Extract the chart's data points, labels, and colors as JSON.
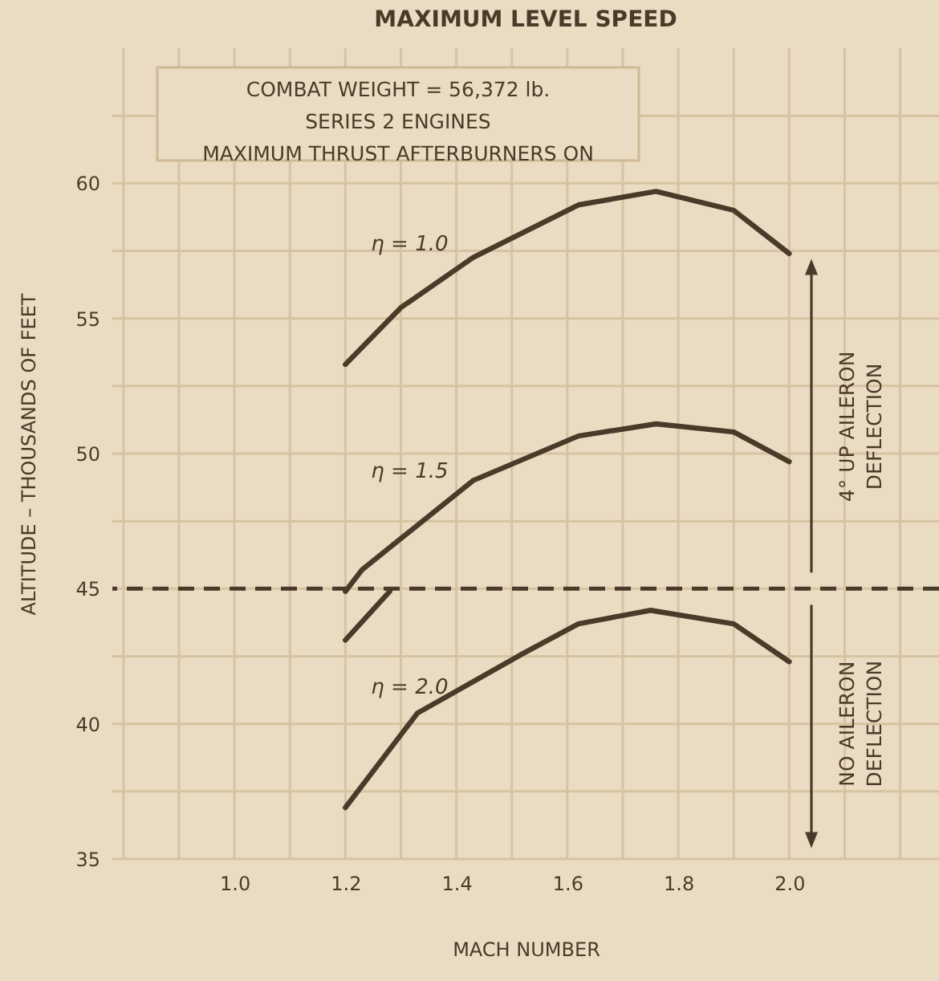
{
  "chart_data": {
    "type": "line",
    "title": "MAXIMUM LEVEL SPEED",
    "xlabel": "MACH NUMBER",
    "ylabel": "ALTITUDE – THOUSANDS OF FEET",
    "xlim": [
      0.78,
      2.27
    ],
    "ylim": [
      35,
      65
    ],
    "xticks": [
      {
        "value": 0.8,
        "label": null
      },
      {
        "value": 0.9,
        "label": null
      },
      {
        "value": 1,
        "label": "1.0"
      },
      {
        "value": 1.1,
        "label": null
      },
      1.2,
      {
        "value": 1.3,
        "label": null
      },
      1.4,
      {
        "value": 1.5,
        "label": null
      },
      1.6,
      {
        "value": 1.7,
        "label": null
      },
      1.8,
      {
        "value": 1.9,
        "label": null
      },
      {
        "value": 2,
        "label": "2.0"
      },
      {
        "value": 2.1,
        "label": null
      },
      {
        "value": 2.2,
        "label": null
      }
    ],
    "yticks": [
      35,
      {
        "value": 37.5,
        "label": null
      },
      40,
      {
        "value": 42.5,
        "label": null
      },
      45,
      {
        "value": 47.5,
        "label": null
      },
      50,
      {
        "value": 52.5,
        "label": null
      },
      55,
      {
        "value": 57.5,
        "label": null
      },
      60,
      {
        "value": 62.5,
        "label": null
      }
    ],
    "grid": true,
    "marker": "none",
    "line_style": "solid",
    "series": [
      {
        "name": "η = 1.0",
        "color": "#4a3a2a",
        "x": [
          1.2,
          1.3,
          1.43,
          1.62,
          1.76,
          1.9,
          2.0
        ],
        "values": [
          53.3,
          55.4,
          57.25,
          59.2,
          59.7,
          59.0,
          57.4
        ]
      },
      {
        "name": "η = 1.5",
        "color": "#4a3a2a",
        "x": [
          1.2,
          1.23,
          1.43,
          1.62,
          1.76,
          1.9,
          2.0
        ],
        "values": [
          44.9,
          45.7,
          49.0,
          50.65,
          51.1,
          50.8,
          49.7
        ]
      },
      {
        "color": "#4a3a2a",
        "x": [
          1.2,
          1.28
        ],
        "values": [
          43.1,
          44.9
        ]
      },
      {
        "name": "η = 2.0",
        "color": "#4a3a2a",
        "x": [
          1.2,
          1.33,
          1.52,
          1.62,
          1.75,
          1.9,
          2.0
        ],
        "values": [
          36.9,
          40.4,
          42.6,
          43.7,
          44.2,
          43.7,
          42.3
        ]
      }
    ],
    "ref_lines": [
      {
        "axis": "y",
        "value": 45,
        "color": "#4a3a2a",
        "line_style": "dashed"
      }
    ],
    "annotations": [
      "COMBAT WEIGHT = 56,372 lb.",
      "SERIES 2 ENGINES",
      "MAXIMUM THRUST AFTERBURNERS ON",
      "4° UP AILERON DEFLECTION",
      "NO AILERON DEFLECTION"
    ]
  }
}
